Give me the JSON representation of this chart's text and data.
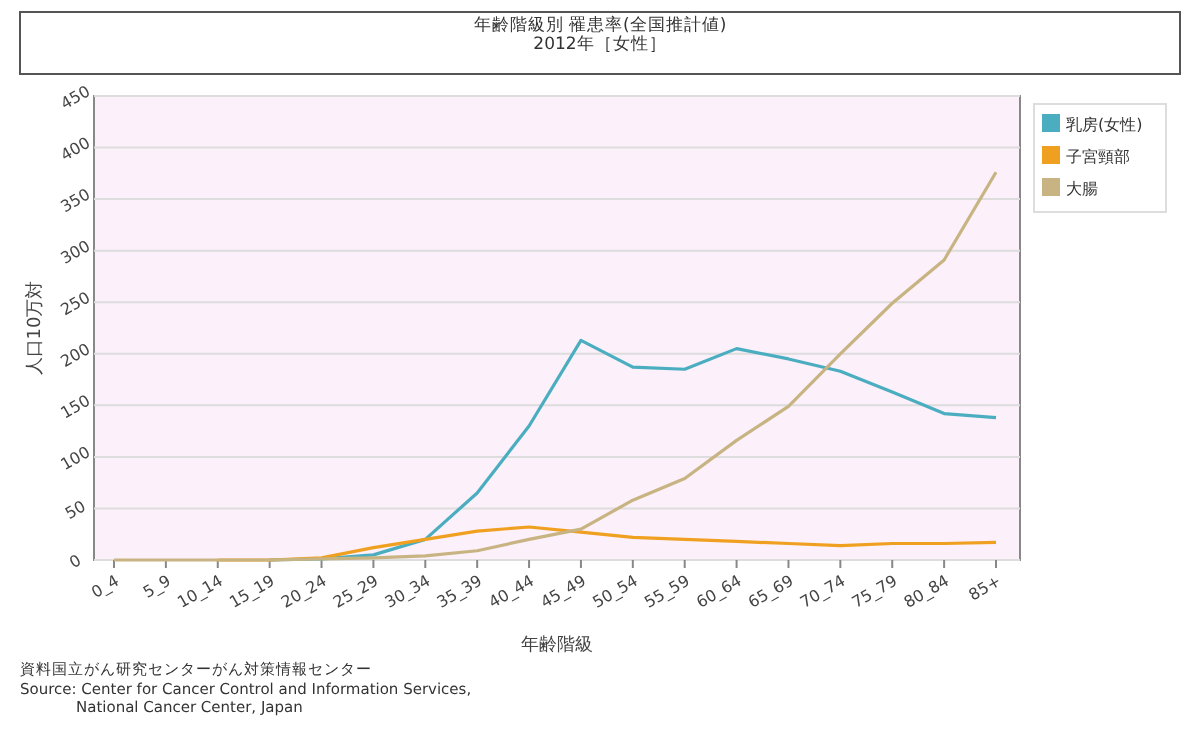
{
  "chart_data": {
    "type": "line",
    "title": "年齢階級別 罹患率(全国推計値)",
    "subtitle": "2012年［女性］",
    "xlabel": "年齢階級",
    "ylabel": "人口10万対",
    "categories": [
      "0_4",
      "5_9",
      "10_14",
      "15_19",
      "20_24",
      "25_29",
      "30_34",
      "35_39",
      "40_44",
      "45_49",
      "50_54",
      "55_59",
      "60_64",
      "65_69",
      "70_74",
      "75_79",
      "80_84",
      "85+"
    ],
    "series": [
      {
        "name": "乳房(女性)",
        "color": "#4badc0",
        "values": [
          null,
          null,
          null,
          0,
          1,
          5,
          20,
          65,
          130,
          213,
          187,
          185,
          205,
          195,
          183,
          163,
          142,
          138
        ]
      },
      {
        "name": "子宮頸部",
        "color": "#f0a020",
        "values": [
          null,
          null,
          0,
          0,
          2,
          12,
          20,
          28,
          32,
          27,
          22,
          20,
          18,
          16,
          14,
          16,
          16,
          17
        ]
      },
      {
        "name": "大腸",
        "color": "#c8b482",
        "values": [
          0,
          0,
          0,
          0,
          1,
          2,
          4,
          9,
          20,
          30,
          58,
          79,
          116,
          149,
          200,
          249,
          291,
          376
        ]
      }
    ],
    "ylim": [
      0,
      450
    ],
    "yticks": [
      0,
      50,
      100,
      150,
      200,
      250,
      300,
      350,
      400,
      450
    ],
    "grid": "y",
    "legend": "top right",
    "marker": "none",
    "line_style": "solid",
    "annotations": [
      "資料国立がん研究センターがん対策情報センター",
      "Source: Center for Cancer Control and Information Services,\nNational Cancer Center, Japan"
    ]
  }
}
